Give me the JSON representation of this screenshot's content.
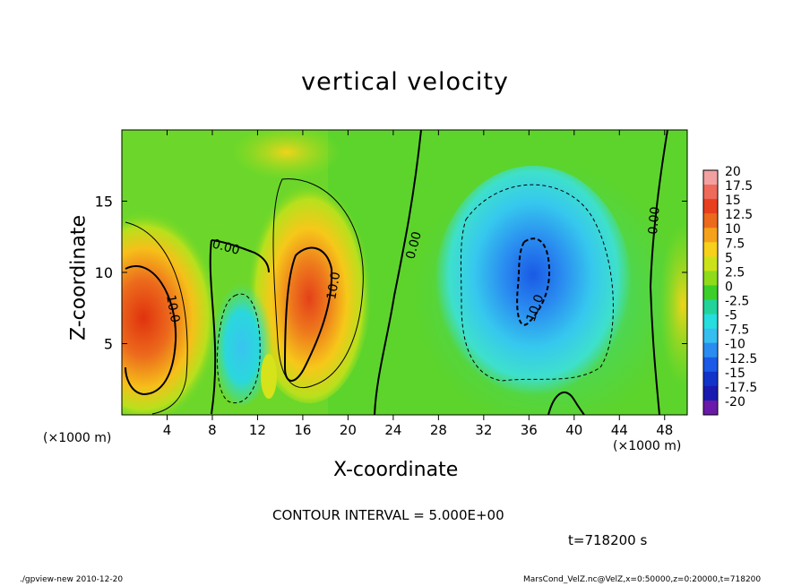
{
  "chart_data": {
    "type": "heatmap",
    "title": "vertical velocity",
    "xlabel": "X-coordinate",
    "ylabel": "Z-coordinate",
    "x_unit_label": "(×1000 m)",
    "y_unit_label": "(×1000 m)",
    "xlim": [
      0,
      50
    ],
    "ylim": [
      0,
      20
    ],
    "x_ticks": [
      "4",
      "8",
      "12",
      "16",
      "20",
      "24",
      "28",
      "32",
      "36",
      "40",
      "44",
      "48"
    ],
    "y_ticks": [
      "5",
      "10",
      "15"
    ],
    "colorbar": {
      "labels": [
        "20",
        "17.5",
        "15",
        "12.5",
        "10",
        "7.5",
        "5",
        "2.5",
        "0",
        "-2.5",
        "-5",
        "-7.5",
        "-10",
        "-12.5",
        "-15",
        "-17.5",
        "-20"
      ],
      "colors": [
        "#f2a0a0",
        "#ee6a5a",
        "#e8401e",
        "#ec6a1c",
        "#f5a11c",
        "#f6d01a",
        "#cbe21a",
        "#8fdb1a",
        "#3ccf2a",
        "#22d49a",
        "#26dede",
        "#36bef0",
        "#2a8cf0",
        "#1a5ae6",
        "#1234c8",
        "#1a1ab0",
        "#6a1aa8"
      ]
    },
    "contour_labels": [
      "0.00",
      "0.00",
      "0.00",
      "10.0",
      "10.0",
      "10.0"
    ],
    "contour_interval": "CONTOUR INTERVAL = 5.000E+00",
    "time": "t=718200 s"
  },
  "footer": {
    "left": "./gpview-new   2010-12-20",
    "right": "MarsCond_VelZ.nc@VelZ,x=0:50000,z=0:20000,t=718200"
  }
}
